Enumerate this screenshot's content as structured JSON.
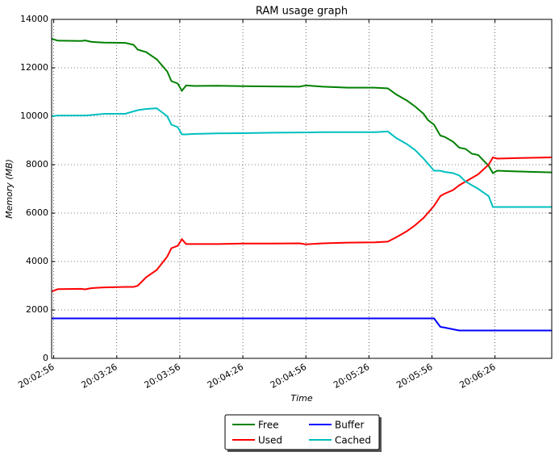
{
  "chart_data": {
    "type": "line",
    "title": "RAM usage graph",
    "x_label": "Time",
    "y_label": "Memory (MB)",
    "x": [
      72175,
      72178,
      72189,
      72191,
      72194,
      72200,
      72210,
      72214,
      72216,
      72220,
      72225,
      72230,
      72232,
      72235,
      72237,
      72239,
      72243,
      72254,
      72266,
      72281,
      72293,
      72296,
      72304,
      72316,
      72329,
      72335,
      72339,
      72344,
      72348,
      72352,
      72354,
      72357,
      72360,
      72362,
      72366,
      72369,
      72372,
      72375,
      72378,
      72383,
      72385,
      72387,
      72396,
      72413
    ],
    "series": [
      {
        "name": "Free",
        "color": "#008000",
        "values": [
          13200,
          13120,
          13110,
          13130,
          13070,
          13040,
          13030,
          12950,
          12750,
          12650,
          12350,
          11850,
          11450,
          11350,
          11050,
          11270,
          11250,
          11260,
          11240,
          11230,
          11220,
          11270,
          11220,
          11180,
          11180,
          11150,
          10900,
          10650,
          10400,
          10100,
          9850,
          9650,
          9200,
          9150,
          8950,
          8700,
          8650,
          8450,
          8400,
          7950,
          7650,
          7750,
          7720,
          7680
        ]
      },
      {
        "name": "Used",
        "color": "#ff0000",
        "values": [
          2760,
          2860,
          2870,
          2850,
          2900,
          2930,
          2950,
          2950,
          3000,
          3350,
          3650,
          4200,
          4550,
          4650,
          4920,
          4720,
          4720,
          4720,
          4740,
          4740,
          4750,
          4710,
          4750,
          4780,
          4790,
          4820,
          5000,
          5250,
          5500,
          5800,
          6000,
          6300,
          6700,
          6800,
          6950,
          7150,
          7300,
          7450,
          7600,
          8000,
          8300,
          8250,
          8270,
          8300
        ]
      },
      {
        "name": "Buffer",
        "color": "#0000ff",
        "values": [
          1650,
          1650,
          1650,
          1650,
          1650,
          1650,
          1650,
          1650,
          1650,
          1650,
          1650,
          1650,
          1650,
          1650,
          1650,
          1650,
          1650,
          1650,
          1650,
          1650,
          1650,
          1650,
          1650,
          1650,
          1650,
          1650,
          1650,
          1650,
          1650,
          1650,
          1650,
          1650,
          1300,
          1270,
          1200,
          1150,
          1150,
          1150,
          1150,
          1150,
          1150,
          1150,
          1150,
          1150
        ]
      },
      {
        "name": "Cached",
        "color": "#00bfbf",
        "values": [
          10000,
          10030,
          10030,
          10030,
          10050,
          10100,
          10100,
          10200,
          10250,
          10300,
          10330,
          10000,
          9650,
          9550,
          9250,
          9250,
          9270,
          9290,
          9300,
          9320,
          9330,
          9330,
          9340,
          9340,
          9340,
          9370,
          9100,
          8850,
          8600,
          8250,
          8050,
          7750,
          7750,
          7700,
          7650,
          7550,
          7300,
          7150,
          7000,
          6700,
          6250,
          6250,
          6250,
          6250
        ]
      }
    ],
    "xlim": [
      72175,
      72413
    ],
    "xticks": [
      {
        "value": 72176,
        "label": "20:02:56"
      },
      {
        "value": 72206,
        "label": "20:03:26"
      },
      {
        "value": 72236,
        "label": "20:03:56"
      },
      {
        "value": 72266,
        "label": "20:04:26"
      },
      {
        "value": 72296,
        "label": "20:04:56"
      },
      {
        "value": 72326,
        "label": "20:05:26"
      },
      {
        "value": 72356,
        "label": "20:05:56"
      },
      {
        "value": 72386,
        "label": "20:06:26"
      }
    ],
    "ylim": [
      0,
      14000
    ],
    "yticks": [
      0,
      2000,
      4000,
      6000,
      8000,
      10000,
      12000,
      14000
    ],
    "grid": true,
    "legend": "lower center"
  }
}
